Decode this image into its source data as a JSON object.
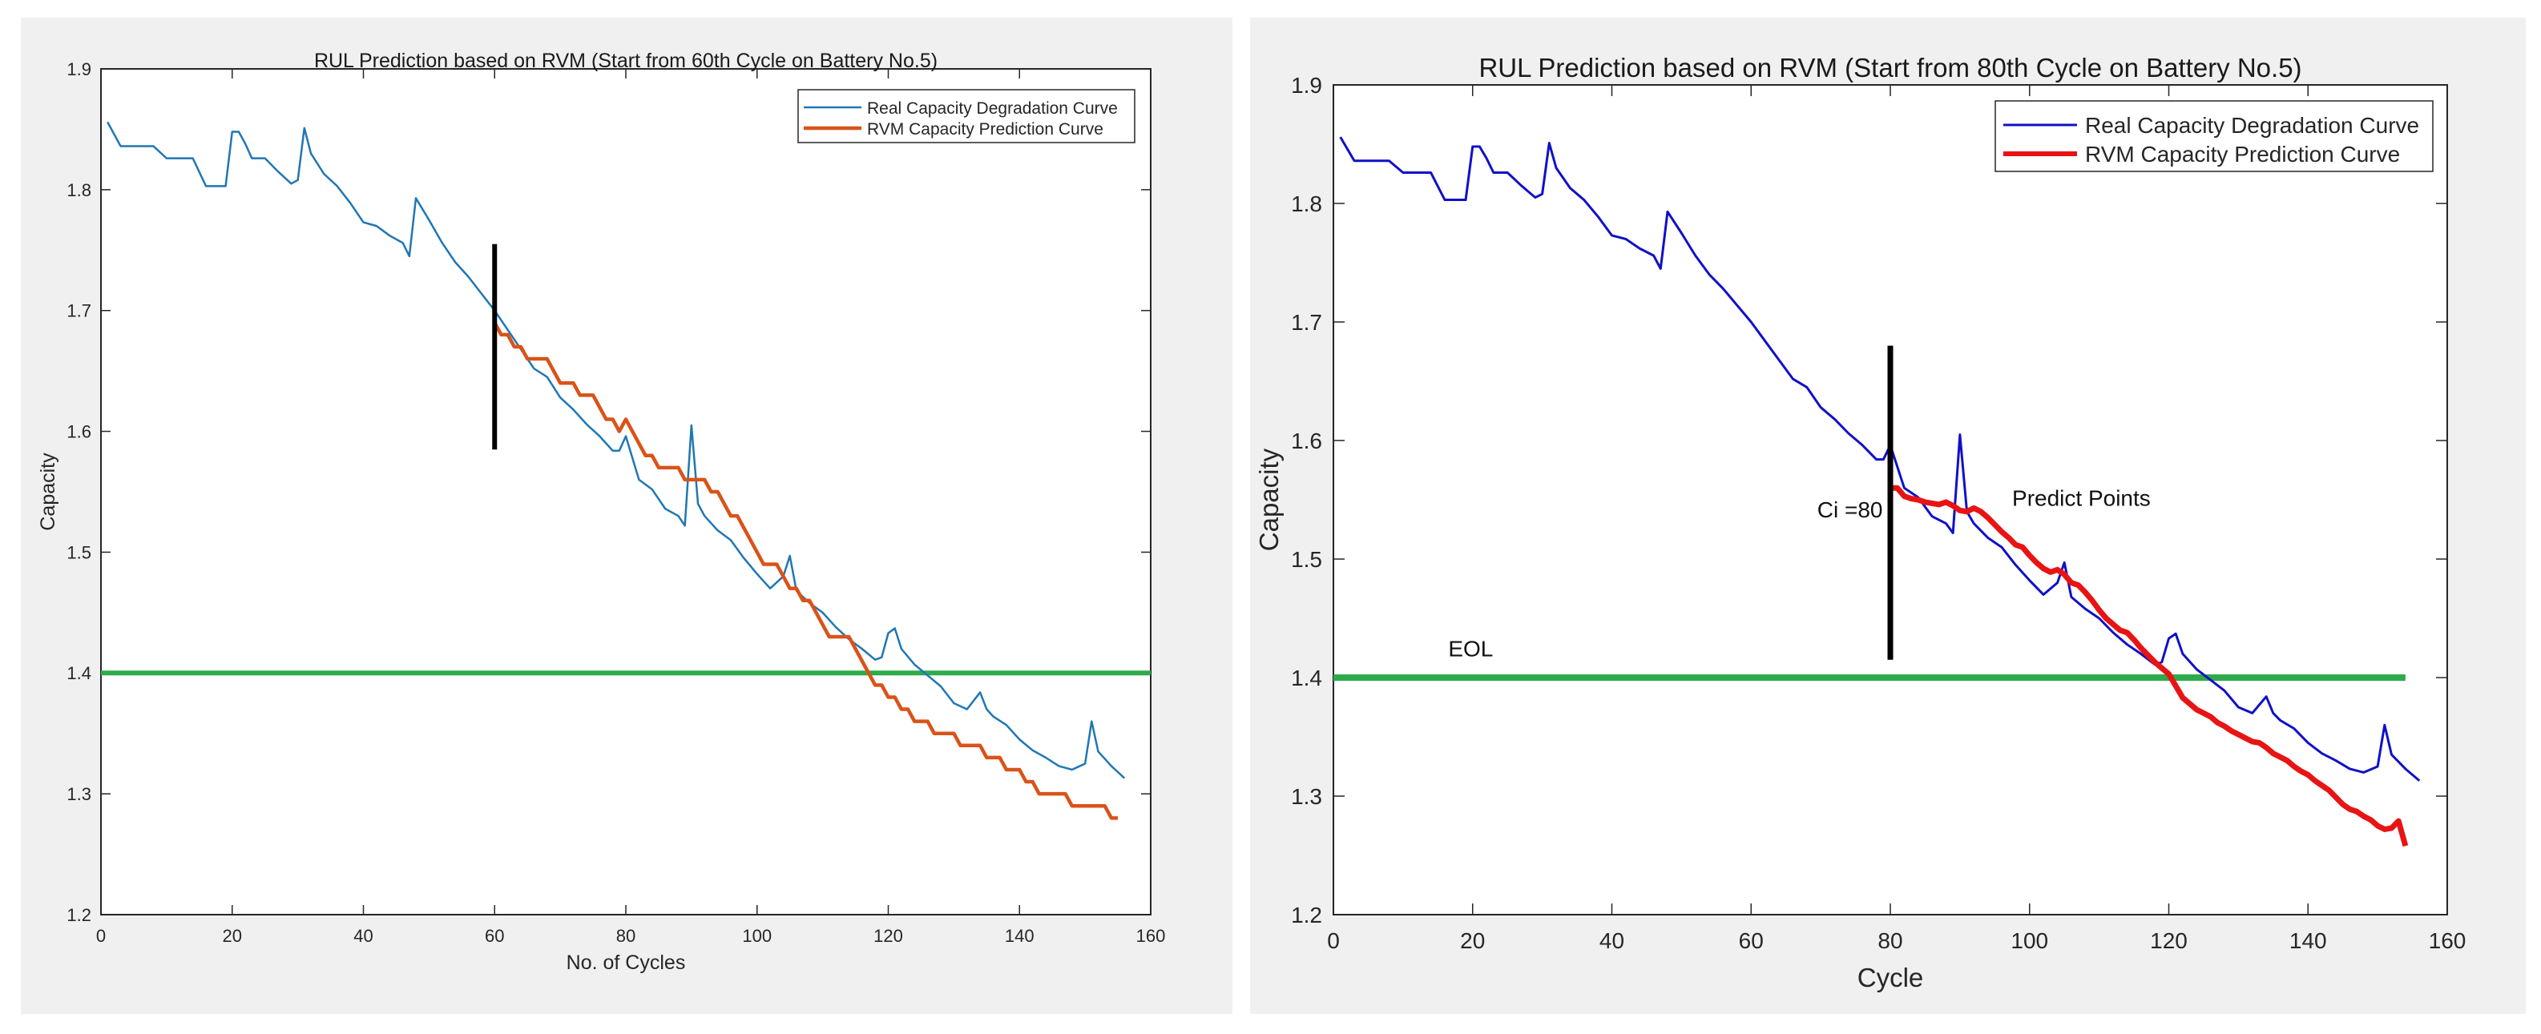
{
  "chart_data": [
    {
      "type": "line",
      "title": "RUL Prediction based on RVM (Start from 60th Cycle on Battery No.5)",
      "xlabel": "No. of Cycles",
      "ylabel": "Capacity",
      "xlim": [
        0,
        160
      ],
      "ylim": [
        1.2,
        1.9
      ],
      "xticks": [
        0,
        20,
        40,
        60,
        80,
        100,
        120,
        140,
        160
      ],
      "yticks": [
        1.2,
        1.3,
        1.4,
        1.5,
        1.6,
        1.7,
        1.8,
        1.9
      ],
      "legend_position": "top-right",
      "colors": {
        "real": "#1f77b4",
        "pred": "#d95319",
        "eol": "#2eab4a",
        "marker": "#000000"
      },
      "threshold": {
        "y": 1.4,
        "x_range": [
          0,
          160
        ]
      },
      "start_marker": {
        "x": 60,
        "y_range": [
          1.585,
          1.755
        ]
      },
      "annotations": [],
      "series": [
        {
          "name": "Real Capacity Degradation Curve",
          "x": [
            1,
            3,
            5,
            8,
            10,
            14,
            16,
            19,
            20,
            21,
            22,
            23,
            25,
            27,
            29,
            30,
            31,
            32,
            34,
            36,
            38,
            40,
            42,
            44,
            46,
            47,
            48,
            50,
            52,
            54,
            56,
            58,
            60,
            62,
            64,
            66,
            68,
            70,
            72,
            74,
            76,
            78,
            79,
            80,
            82,
            84,
            86,
            88,
            89,
            90,
            91,
            92,
            94,
            96,
            98,
            100,
            102,
            104,
            105,
            106,
            108,
            110,
            112,
            114,
            116,
            118,
            119,
            120,
            121,
            122,
            124,
            126,
            128,
            130,
            132,
            134,
            135,
            136,
            138,
            140,
            142,
            144,
            146,
            148,
            150,
            151,
            152,
            154,
            156
          ],
          "values": [
            1.856,
            1.836,
            1.836,
            1.836,
            1.826,
            1.826,
            1.803,
            1.803,
            1.848,
            1.848,
            1.838,
            1.826,
            1.826,
            1.815,
            1.805,
            1.808,
            1.851,
            1.83,
            1.813,
            1.803,
            1.789,
            1.773,
            1.77,
            1.762,
            1.756,
            1.745,
            1.793,
            1.775,
            1.756,
            1.74,
            1.728,
            1.714,
            1.7,
            1.684,
            1.668,
            1.652,
            1.645,
            1.628,
            1.618,
            1.606,
            1.596,
            1.584,
            1.584,
            1.596,
            1.56,
            1.552,
            1.536,
            1.53,
            1.522,
            1.605,
            1.54,
            1.53,
            1.518,
            1.51,
            1.495,
            1.482,
            1.47,
            1.48,
            1.497,
            1.468,
            1.458,
            1.45,
            1.438,
            1.428,
            1.42,
            1.411,
            1.413,
            1.433,
            1.437,
            1.42,
            1.407,
            1.398,
            1.389,
            1.375,
            1.37,
            1.384,
            1.37,
            1.364,
            1.357,
            1.345,
            1.336,
            1.33,
            1.323,
            1.32,
            1.325,
            1.36,
            1.335,
            1.323,
            1.313
          ]
        },
        {
          "name": "RVM Capacity Prediction Curve",
          "x": [
            60,
            61,
            62,
            63,
            64,
            65,
            66,
            67,
            68,
            69,
            70,
            71,
            72,
            73,
            74,
            75,
            76,
            77,
            78,
            79,
            80,
            81,
            82,
            83,
            84,
            85,
            86,
            87,
            88,
            89,
            90,
            91,
            92,
            93,
            94,
            95,
            96,
            97,
            98,
            99,
            100,
            101,
            102,
            103,
            104,
            105,
            106,
            107,
            108,
            109,
            110,
            111,
            112,
            113,
            114,
            115,
            116,
            117,
            118,
            119,
            120,
            121,
            122,
            123,
            124,
            125,
            126,
            127,
            128,
            129,
            130,
            131,
            132,
            133,
            134,
            135,
            136,
            137,
            138,
            139,
            140,
            141,
            142,
            143,
            144,
            145,
            146,
            147,
            148,
            149,
            150,
            151,
            152,
            153,
            154,
            155
          ],
          "values": [
            1.69,
            1.68,
            1.68,
            1.67,
            1.67,
            1.66,
            1.66,
            1.66,
            1.66,
            1.65,
            1.64,
            1.64,
            1.64,
            1.63,
            1.63,
            1.63,
            1.62,
            1.61,
            1.61,
            1.6,
            1.61,
            1.6,
            1.59,
            1.58,
            1.58,
            1.57,
            1.57,
            1.57,
            1.57,
            1.56,
            1.56,
            1.56,
            1.56,
            1.55,
            1.55,
            1.54,
            1.53,
            1.53,
            1.52,
            1.51,
            1.5,
            1.49,
            1.49,
            1.49,
            1.48,
            1.47,
            1.47,
            1.46,
            1.46,
            1.45,
            1.44,
            1.43,
            1.43,
            1.43,
            1.43,
            1.42,
            1.41,
            1.4,
            1.39,
            1.39,
            1.38,
            1.38,
            1.37,
            1.37,
            1.36,
            1.36,
            1.36,
            1.35,
            1.35,
            1.35,
            1.35,
            1.34,
            1.34,
            1.34,
            1.34,
            1.33,
            1.33,
            1.33,
            1.32,
            1.32,
            1.32,
            1.31,
            1.31,
            1.3,
            1.3,
            1.3,
            1.3,
            1.3,
            1.29,
            1.29,
            1.29,
            1.29,
            1.29,
            1.29,
            1.28,
            1.28
          ]
        }
      ]
    },
    {
      "type": "line",
      "title": "RUL Prediction based on RVM (Start from 80th Cycle on Battery No.5)",
      "xlabel": "Cycle",
      "ylabel": "Capacity",
      "xlim": [
        0,
        160
      ],
      "ylim": [
        1.2,
        1.9
      ],
      "xticks": [
        0,
        20,
        40,
        60,
        80,
        100,
        120,
        140,
        160
      ],
      "yticks": [
        1.2,
        1.3,
        1.4,
        1.5,
        1.6,
        1.7,
        1.8,
        1.9
      ],
      "legend_position": "top-right",
      "colors": {
        "real": "#1010c8",
        "pred": "#e81414",
        "eol": "#2eab4a",
        "marker": "#000000"
      },
      "threshold": {
        "y": 1.4,
        "x_range": [
          0,
          154
        ]
      },
      "start_marker": {
        "x": 80,
        "y_range": [
          1.415,
          1.68
        ]
      },
      "annotations": [
        {
          "text": "Ci =80",
          "x": 69.5,
          "y": 1.535
        },
        {
          "text": "Predict Points",
          "x": 97.5,
          "y": 1.545
        },
        {
          "text": "EOL",
          "x": 16.5,
          "y": 1.418
        }
      ],
      "series": [
        {
          "name": "Real Capacity Degradation Curve",
          "x": [
            1,
            3,
            5,
            8,
            10,
            14,
            16,
            19,
            20,
            21,
            22,
            23,
            25,
            27,
            29,
            30,
            31,
            32,
            34,
            36,
            38,
            40,
            42,
            44,
            46,
            47,
            48,
            50,
            52,
            54,
            56,
            58,
            60,
            62,
            64,
            66,
            68,
            70,
            72,
            74,
            76,
            78,
            79,
            80,
            82,
            84,
            86,
            88,
            89,
            90,
            91,
            92,
            94,
            96,
            98,
            100,
            102,
            104,
            105,
            106,
            108,
            110,
            112,
            114,
            116,
            118,
            119,
            120,
            121,
            122,
            124,
            126,
            128,
            130,
            132,
            134,
            135,
            136,
            138,
            140,
            142,
            144,
            146,
            148,
            150,
            151,
            152,
            154,
            156
          ],
          "values": [
            1.856,
            1.836,
            1.836,
            1.836,
            1.826,
            1.826,
            1.803,
            1.803,
            1.848,
            1.848,
            1.838,
            1.826,
            1.826,
            1.815,
            1.805,
            1.808,
            1.851,
            1.83,
            1.813,
            1.803,
            1.789,
            1.773,
            1.77,
            1.762,
            1.756,
            1.745,
            1.793,
            1.775,
            1.756,
            1.74,
            1.728,
            1.714,
            1.7,
            1.684,
            1.668,
            1.652,
            1.645,
            1.628,
            1.618,
            1.606,
            1.596,
            1.584,
            1.584,
            1.596,
            1.56,
            1.552,
            1.536,
            1.53,
            1.522,
            1.605,
            1.54,
            1.53,
            1.518,
            1.51,
            1.495,
            1.482,
            1.47,
            1.48,
            1.497,
            1.468,
            1.458,
            1.45,
            1.438,
            1.428,
            1.42,
            1.411,
            1.413,
            1.433,
            1.437,
            1.42,
            1.407,
            1.398,
            1.389,
            1.375,
            1.37,
            1.384,
            1.37,
            1.364,
            1.357,
            1.345,
            1.336,
            1.33,
            1.323,
            1.32,
            1.325,
            1.36,
            1.335,
            1.323,
            1.313
          ]
        },
        {
          "name": "RVM Capacity Prediction Curve",
          "x": [
            80,
            81,
            82,
            83,
            84,
            85,
            86,
            87,
            88,
            89,
            90,
            91,
            92,
            93,
            94,
            95,
            96,
            97,
            98,
            99,
            100,
            101,
            102,
            103,
            104,
            105,
            106,
            107,
            108,
            109,
            110,
            111,
            112,
            113,
            114,
            115,
            116,
            117,
            118,
            119,
            120,
            121,
            122,
            123,
            124,
            125,
            126,
            127,
            128,
            129,
            130,
            131,
            132,
            133,
            134,
            135,
            136,
            137,
            138,
            139,
            140,
            141,
            142,
            143,
            144,
            145,
            146,
            147,
            148,
            149,
            150,
            151,
            152,
            153,
            154
          ],
          "values": [
            1.56,
            1.56,
            1.553,
            1.551,
            1.55,
            1.548,
            1.547,
            1.546,
            1.548,
            1.545,
            1.541,
            1.54,
            1.543,
            1.54,
            1.535,
            1.529,
            1.523,
            1.518,
            1.512,
            1.51,
            1.503,
            1.497,
            1.492,
            1.489,
            1.491,
            1.487,
            1.48,
            1.478,
            1.472,
            1.465,
            1.457,
            1.45,
            1.445,
            1.44,
            1.438,
            1.432,
            1.425,
            1.419,
            1.413,
            1.408,
            1.403,
            1.393,
            1.383,
            1.378,
            1.373,
            1.37,
            1.367,
            1.362,
            1.359,
            1.355,
            1.352,
            1.349,
            1.346,
            1.345,
            1.341,
            1.336,
            1.333,
            1.33,
            1.325,
            1.321,
            1.318,
            1.313,
            1.309,
            1.305,
            1.299,
            1.293,
            1.289,
            1.287,
            1.283,
            1.28,
            1.275,
            1.272,
            1.273,
            1.279,
            1.258
          ]
        }
      ]
    }
  ]
}
